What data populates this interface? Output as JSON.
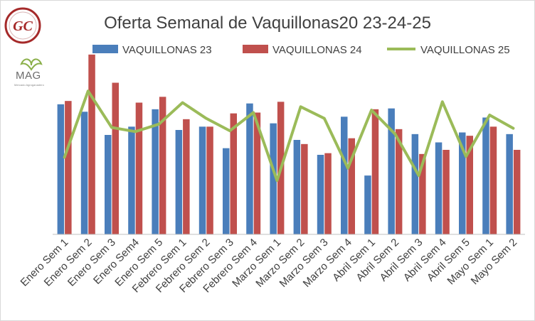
{
  "logos": {
    "gc_text": "GC",
    "mag_text": "MAG",
    "mag_sub": "Mercado Agroganadero",
    "accent": "#a52a2a",
    "mag_green": "#8bb04a"
  },
  "chart_data": {
    "type": "bar",
    "title": "Oferta Semanal de Vaquillonas20 23-24-25",
    "categories": [
      "Enero Sem 1",
      "Enero Sem 2",
      "Enero Sem 3",
      "Enero Sem4",
      "Enero Sem 5",
      "Febrero Sem 1",
      "Febrero Sem 2",
      "Febrero Sem 3",
      "Febrero Sem 4",
      "Marzo Sem 1",
      "Marzo Sem 2",
      "Marzo Sem 3",
      "Marzo Sem 4",
      "Abril Sem 1",
      "Abril Sem 2",
      "Abril Sem 3",
      "Abril Sem 4",
      "Abril Sem 5",
      "Mayo Sem 1",
      "Mayo Sem 2"
    ],
    "series": [
      {
        "name": "VAQUILLONAS 23",
        "type": "bar",
        "color": "#4a7ebb",
        "values": [
          157,
          148,
          120,
          130,
          151,
          126,
          130,
          104,
          158,
          134,
          114,
          96,
          142,
          71,
          152,
          121,
          111,
          123,
          141,
          121
        ]
      },
      {
        "name": "VAQUILLONAS 24",
        "type": "bar",
        "color": "#c0504d",
        "values": [
          161,
          217,
          183,
          159,
          166,
          139,
          130,
          146,
          147,
          160,
          109,
          98,
          116,
          151,
          127,
          97,
          102,
          119,
          130,
          102
        ]
      },
      {
        "name": "VAQUILLONAS 25",
        "type": "line",
        "color": "#9bbb59",
        "values": [
          93,
          173,
          129,
          124,
          133,
          159,
          140,
          125,
          147,
          65,
          154,
          140,
          80,
          150,
          121,
          71,
          160,
          94,
          144,
          128
        ]
      }
    ],
    "ylim": [
      0,
      240
    ],
    "grid": false,
    "legend_position": "top"
  }
}
